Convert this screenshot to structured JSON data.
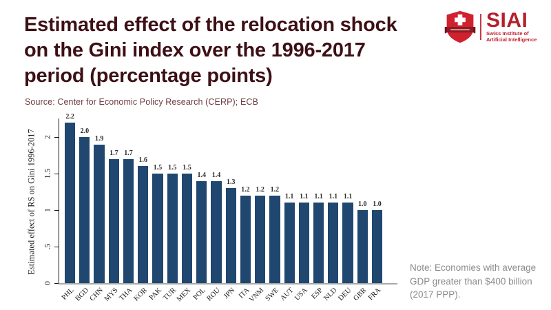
{
  "page": {
    "background": "#ffffff"
  },
  "header": {
    "title_lines": [
      "Estimated effect of the relocation shock",
      "on the Gini index over the 1996-2017",
      "period (percentage points)"
    ],
    "title_color": "#3d1016",
    "source": "Source: Center for Economic Policy Research (CERP); ECB"
  },
  "logo": {
    "acronym": "SIAI",
    "subtitle_lines": [
      "Swiss Institute of",
      "Artificial Intelligence"
    ],
    "shield_icon": "swiss-shield-cross-ribbon",
    "brand_red": "#c0212f"
  },
  "chart_data": {
    "type": "bar",
    "title": "Estimated effect of the relocation shock on the Gini index over the 1996-2017 period (percentage points)",
    "ylabel": "Estimated effect of RS on Gini 1996-2017",
    "xlabel": "",
    "categories": [
      "PHL",
      "BGD",
      "CHN",
      "MYS",
      "THA",
      "KOR",
      "PAK",
      "TUR",
      "MEX",
      "POL",
      "ROU",
      "JPN",
      "ITA",
      "VNM",
      "SWE",
      "AUT",
      "USA",
      "ESP",
      "NLD",
      "DEU",
      "GBR",
      "FRA"
    ],
    "values": [
      2.2,
      2.0,
      1.9,
      1.7,
      1.7,
      1.6,
      1.5,
      1.5,
      1.5,
      1.4,
      1.4,
      1.3,
      1.2,
      1.2,
      1.2,
      1.1,
      1.1,
      1.1,
      1.1,
      1.1,
      1.0,
      1.0
    ],
    "ylim": [
      0,
      2.2
    ],
    "yticks": {
      "values": [
        0,
        0.5,
        1,
        1.5,
        2
      ],
      "labels": [
        "0",
        ".5",
        "1",
        "1.5",
        "2"
      ]
    },
    "bar_color": "#1f476f",
    "grid": false,
    "legend": "none",
    "value_labels_shown": true,
    "category_label_angle": 45,
    "ytick_label_angle": 90
  },
  "note": {
    "lines": [
      "Note: Economies with average",
      "GDP greater than $400 billion",
      "(2017 PPP)."
    ]
  }
}
